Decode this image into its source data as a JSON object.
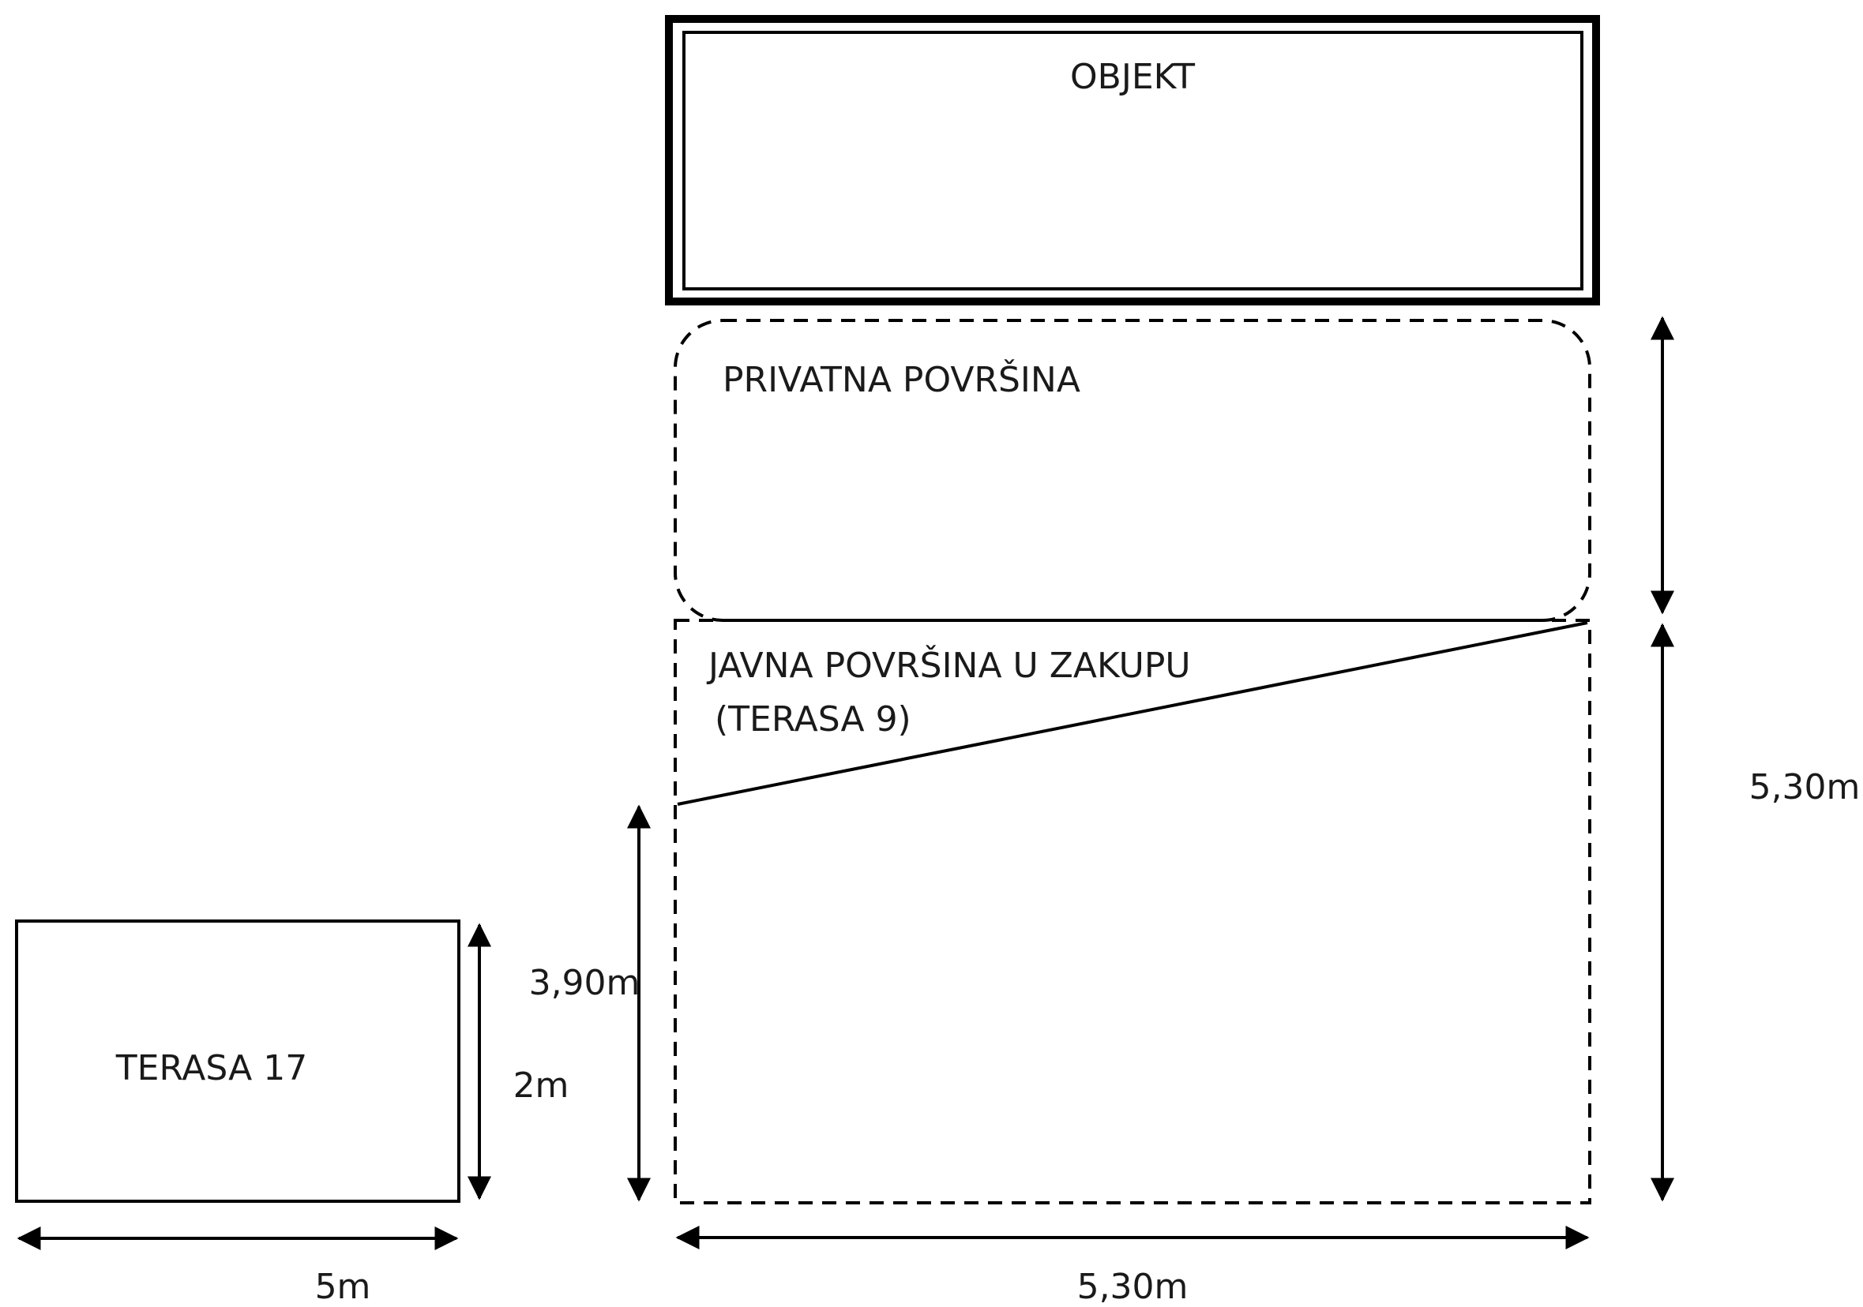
{
  "labels": {
    "objekt": "OBJEKT",
    "privatna": "PRIVATNA POVRŠINA",
    "javna_line1": "JAVNA POVRŠINA U ZAKUPU",
    "javna_line2": "(TERASA 9)",
    "terasa17": "TERASA 17"
  },
  "dimensions": {
    "terasa17_width": "5m",
    "terasa17_height": "2m",
    "javna_width": "5,30m",
    "javna_height_right": "5,30m",
    "javna_height_left": "3,90m"
  }
}
